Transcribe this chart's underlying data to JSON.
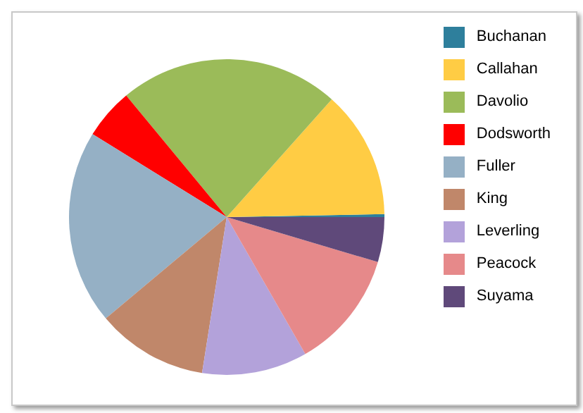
{
  "chart_data": {
    "type": "pie",
    "categories": [
      "Buchanan",
      "Callahan",
      "Davolio",
      "Dodsworth",
      "Fuller",
      "King",
      "Leverling",
      "Peacock",
      "Suyama"
    ],
    "values": [
      0.3,
      13.1,
      22.6,
      5.2,
      19.9,
      11.4,
      10.8,
      12.1,
      4.6
    ],
    "colors": [
      "#2e7f9c",
      "#ffcc44",
      "#9bbb59",
      "#ff0000",
      "#95b0c5",
      "#c0876a",
      "#b3a2da",
      "#e6898a",
      "#5f497a"
    ],
    "legend": "right"
  }
}
